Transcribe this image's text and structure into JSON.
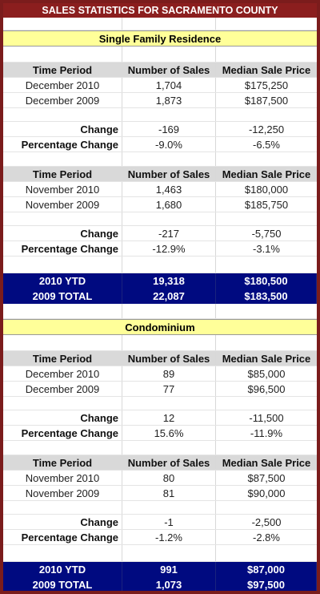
{
  "title": "SALES STATISTICS FOR SACRAMENTO COUNTY",
  "sections": [
    {
      "name": "Single Family Residence",
      "blocks": [
        {
          "header": [
            "Time Period",
            "Number of Sales",
            "Median Sale Price"
          ],
          "rows": [
            [
              "December 2010",
              "1,704",
              "$175,250"
            ],
            [
              "December 2009",
              "1,873",
              "$187,500"
            ]
          ],
          "change": [
            "Change",
            "-169",
            "-12,250"
          ],
          "pct": [
            "Percentage Change",
            "-9.0%",
            "-6.5%"
          ]
        },
        {
          "header": [
            "Time Period",
            "Number of Sales",
            "Median Sale Price"
          ],
          "rows": [
            [
              "November 2010",
              "1,463",
              "$180,000"
            ],
            [
              "November 2009",
              "1,680",
              "$185,750"
            ]
          ],
          "change": [
            "Change",
            "-217",
            "-5,750"
          ],
          "pct": [
            "Percentage Change",
            "-12.9%",
            "-3.1%"
          ]
        }
      ],
      "totals": [
        [
          "2010 YTD",
          "19,318",
          "$180,500"
        ],
        [
          "2009 TOTAL",
          "22,087",
          "$183,500"
        ]
      ]
    },
    {
      "name": "Condominium",
      "blocks": [
        {
          "header": [
            "Time Period",
            "Number of Sales",
            "Median Sale Price"
          ],
          "rows": [
            [
              "December 2010",
              "89",
              "$85,000"
            ],
            [
              "December 2009",
              "77",
              "$96,500"
            ]
          ],
          "change": [
            "Change",
            "12",
            "-11,500"
          ],
          "pct": [
            "Percentage Change",
            "15.6%",
            "-11.9%"
          ]
        },
        {
          "header": [
            "Time Period",
            "Number of Sales",
            "Median Sale Price"
          ],
          "rows": [
            [
              "November 2010",
              "80",
              "$87,500"
            ],
            [
              "November 2009",
              "81",
              "$90,000"
            ]
          ],
          "change": [
            "Change",
            "-1",
            "-2,500"
          ],
          "pct": [
            "Percentage Change",
            "-1.2%",
            "-2.8%"
          ]
        }
      ],
      "totals": [
        [
          "2010 YTD",
          "991",
          "$87,000"
        ],
        [
          "2009 TOTAL",
          "1,073",
          "$97,500"
        ]
      ]
    }
  ]
}
